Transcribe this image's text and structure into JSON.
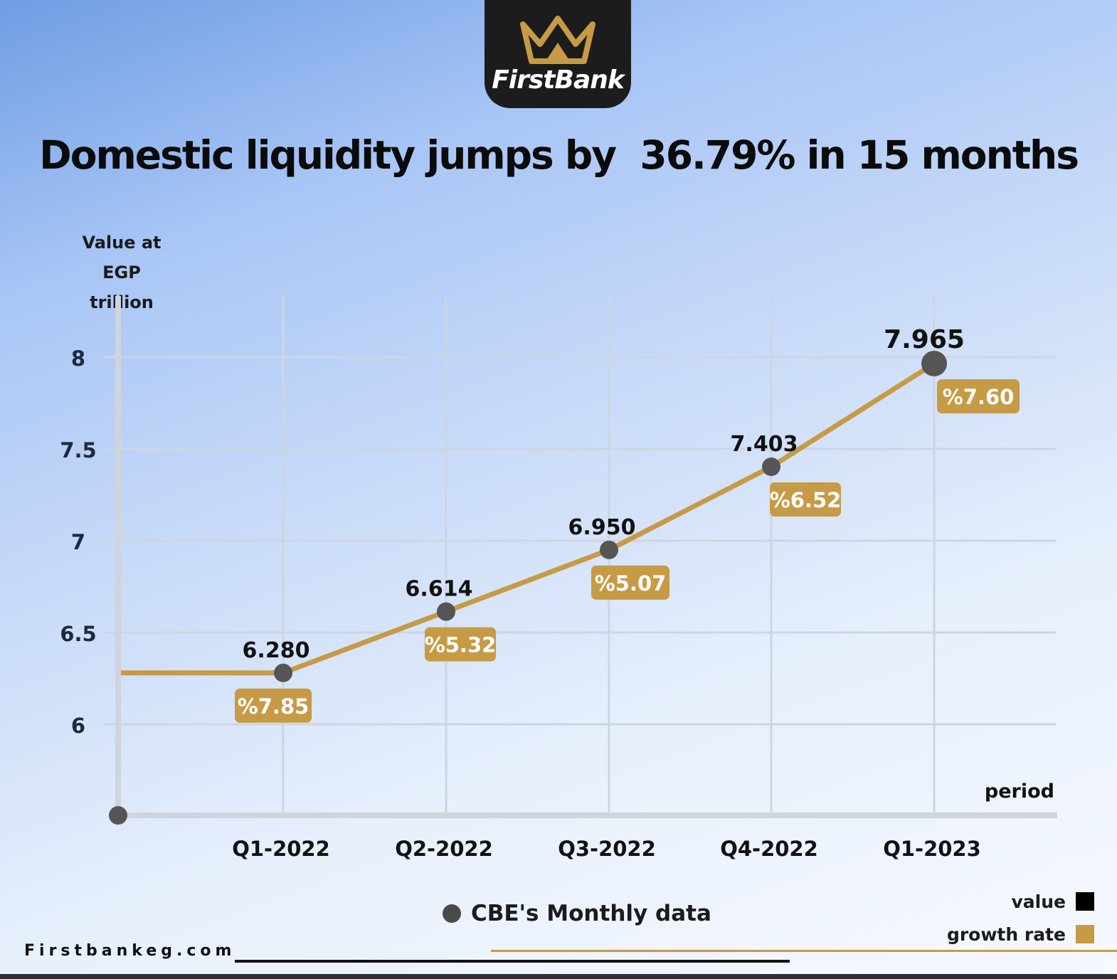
{
  "brand": {
    "name": "FirstBank",
    "accent_color": "#c79a45",
    "logo_bg": "#1c1c1c",
    "logo_icon": "crown-icon"
  },
  "title": "Domestic liquidity jumps by  36.79% in 15 months",
  "y_axis_label": "Value at\nEGP trillion",
  "x_axis_label": "period",
  "legend": {
    "value_label": "value",
    "value_color": "#000000",
    "growth_label": "growth rate",
    "growth_color": "#c79a45"
  },
  "source": "CBE's Monthly data",
  "website": "Firstbankeg.com",
  "chart_data": {
    "type": "line",
    "title": "Domestic liquidity jumps by  36.79% in 15 months",
    "xlabel": "period",
    "ylabel": "Value at EGP trillion",
    "categories": [
      "Q1-2022",
      "Q2-2022",
      "Q3-2022",
      "Q4-2022",
      "Q1-2023"
    ],
    "series": [
      {
        "name": "value",
        "values": [
          6.28,
          6.614,
          6.95,
          7.403,
          7.965
        ],
        "labels": [
          "6.280",
          "6.614",
          "6.950",
          "7.403",
          "7.965"
        ]
      },
      {
        "name": "growth rate",
        "values": [
          7.85,
          5.32,
          5.07,
          6.52,
          7.6
        ],
        "labels": [
          "%7.85",
          "%5.32",
          "%5.07",
          "%6.52",
          "%7.60"
        ]
      }
    ],
    "y_ticks": [
      6,
      6.5,
      7,
      7.5,
      8
    ],
    "y_tick_labels": [
      "6",
      "6.5",
      "7",
      "7.5",
      "8"
    ],
    "ylim": [
      5.5,
      8.3
    ],
    "grid": true,
    "legend_position": "bottom-right",
    "line_color": "#c79a45",
    "marker_color": "#555555"
  }
}
